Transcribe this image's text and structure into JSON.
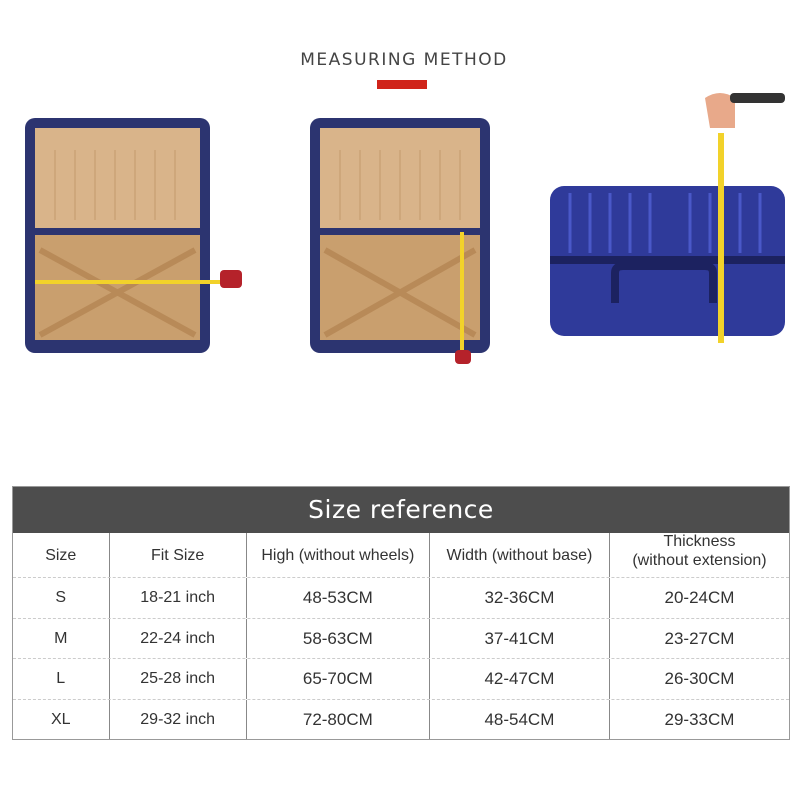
{
  "measuring": {
    "title": "MEASURING METHOD",
    "accent_color": "#d0241a"
  },
  "images": [
    {
      "icon": "open-suitcase-width-measure-icon"
    },
    {
      "icon": "open-suitcase-height-measure-icon"
    },
    {
      "icon": "closed-suitcase-thickness-measure-icon"
    }
  ],
  "table": {
    "title": "Size reference",
    "header_color": "#4d4d4d",
    "columns": [
      "Size",
      "Fit Size",
      "High (without wheels)",
      "Width (without base)",
      "Thickness\n(without extension)"
    ],
    "columns_thickness_line1": "Thickness",
    "columns_thickness_line2": "(without extension)",
    "rows": [
      [
        "S",
        "18-21 inch",
        "48-53CM",
        "32-36CM",
        "20-24CM"
      ],
      [
        "M",
        "22-24 inch",
        "58-63CM",
        "37-41CM",
        "23-27CM"
      ],
      [
        "L",
        "25-28 inch",
        "65-70CM",
        "42-47CM",
        "26-30CM"
      ],
      [
        "XL",
        "29-32 inch",
        "72-80CM",
        "48-54CM",
        "29-33CM"
      ]
    ]
  }
}
